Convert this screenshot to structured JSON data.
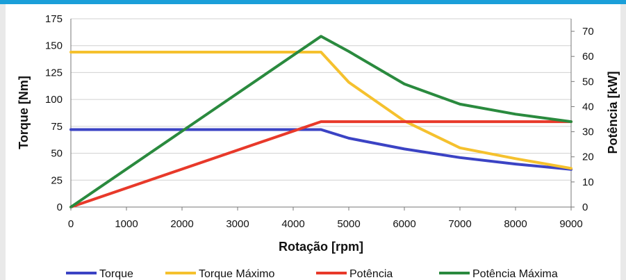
{
  "chart_data": {
    "type": "line",
    "title": "",
    "xlabel": "Rotação [rpm]",
    "ylabel_left": "Torque [Nm]",
    "ylabel_right": "Potência [kW]",
    "xlim": [
      0,
      9000
    ],
    "ylim_left": [
      0,
      175
    ],
    "ylim_right": [
      0,
      75
    ],
    "x_ticks": [
      0,
      1000,
      2000,
      3000,
      4000,
      5000,
      6000,
      7000,
      8000,
      9000
    ],
    "y_left_ticks": [
      0,
      25,
      50,
      75,
      100,
      125,
      150,
      175
    ],
    "y_right_ticks": [
      0,
      10,
      20,
      30,
      40,
      50,
      60,
      70
    ],
    "grid": "horizontal",
    "legend_position": "bottom",
    "series": [
      {
        "name": "Torque",
        "axis": "left",
        "color": "#3b43c4",
        "x": [
          0,
          4500,
          5000,
          6000,
          7000,
          8000,
          9000
        ],
        "y": [
          72,
          72,
          64,
          54,
          46,
          40,
          35
        ]
      },
      {
        "name": "Torque Máximo",
        "axis": "left",
        "color": "#f5c12e",
        "x": [
          0,
          4500,
          5000,
          6000,
          7000,
          8000,
          9000
        ],
        "y": [
          144,
          144,
          116,
          80,
          55,
          45,
          36
        ]
      },
      {
        "name": "Potência",
        "axis": "right",
        "color": "#e8392a",
        "x": [
          0,
          4500,
          9000
        ],
        "y": [
          0,
          34,
          34
        ]
      },
      {
        "name": "Potência Máxima",
        "axis": "right",
        "color": "#2a8a3e",
        "x": [
          0,
          4500,
          5000,
          6000,
          7000,
          8000,
          9000
        ],
        "y": [
          0,
          68,
          62,
          49,
          41,
          37,
          34
        ]
      }
    ]
  }
}
